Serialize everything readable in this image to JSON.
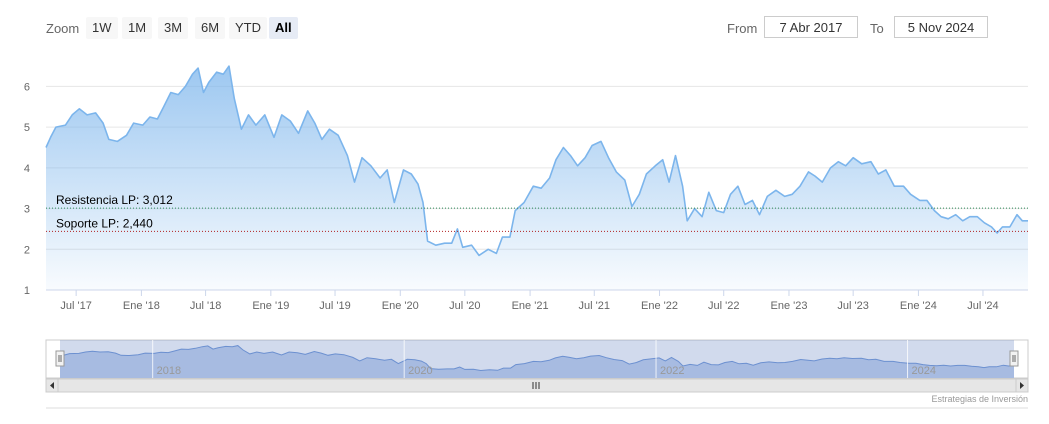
{
  "toolbar": {
    "zoom_label": "Zoom",
    "zoom_buttons": [
      "1W",
      "1M",
      "3M",
      "6M",
      "YTD",
      "All"
    ],
    "active_zoom": "All",
    "from_label": "From",
    "from_value": "7 Abr 2017",
    "to_label": "To",
    "to_value": "5 Nov 2024"
  },
  "credits": "Estrategias de Inversión",
  "colors": {
    "line": "#7cb5ec",
    "fill_top": "#7cb5ec",
    "resistance": "#2e8b57",
    "support": "#b22222",
    "navigator_fill": "#c3d3ee",
    "navigator_mask": "rgba(102,133,194,0.3)"
  },
  "chart_data": {
    "type": "area",
    "title": "",
    "xlabel": "",
    "ylabel": "",
    "ylim": [
      1,
      6.6
    ],
    "yticks": [
      1,
      2,
      3,
      4,
      5,
      6
    ],
    "xlim": [
      "2017-04-07",
      "2024-11-05"
    ],
    "xtick_labels": [
      "Jul '17",
      "Ene '18",
      "Jul '18",
      "Ene '19",
      "Jul '19",
      "Ene '20",
      "Jul '20",
      "Ene '21",
      "Jul '21",
      "Ene '22",
      "Jul '22",
      "Ene '23",
      "Jul '23",
      "Ene '24",
      "Jul '24"
    ],
    "xtick_dates": [
      "2017-07-01",
      "2018-01-01",
      "2018-07-01",
      "2019-01-01",
      "2019-07-01",
      "2020-01-01",
      "2020-07-01",
      "2021-01-01",
      "2021-07-01",
      "2022-01-01",
      "2022-07-01",
      "2023-01-01",
      "2023-07-01",
      "2024-01-01",
      "2024-07-01"
    ],
    "grid": true,
    "series": [
      {
        "values": [
          [
            "2017-04-07",
            4.5
          ],
          [
            "2017-04-20",
            4.75
          ],
          [
            "2017-05-05",
            5.0
          ],
          [
            "2017-06-01",
            5.05
          ],
          [
            "2017-06-20",
            5.3
          ],
          [
            "2017-07-10",
            5.45
          ],
          [
            "2017-08-01",
            5.3
          ],
          [
            "2017-08-25",
            5.35
          ],
          [
            "2017-09-15",
            5.1
          ],
          [
            "2017-10-01",
            4.7
          ],
          [
            "2017-10-25",
            4.65
          ],
          [
            "2017-11-20",
            4.8
          ],
          [
            "2017-12-10",
            5.1
          ],
          [
            "2018-01-05",
            5.05
          ],
          [
            "2018-01-25",
            5.25
          ],
          [
            "2018-02-15",
            5.2
          ],
          [
            "2018-03-05",
            5.5
          ],
          [
            "2018-03-25",
            5.85
          ],
          [
            "2018-04-15",
            5.8
          ],
          [
            "2018-05-05",
            6.0
          ],
          [
            "2018-05-25",
            6.3
          ],
          [
            "2018-06-10",
            6.45
          ],
          [
            "2018-06-25",
            5.85
          ],
          [
            "2018-07-10",
            6.1
          ],
          [
            "2018-08-01",
            6.35
          ],
          [
            "2018-08-20",
            6.3
          ],
          [
            "2018-09-05",
            6.5
          ],
          [
            "2018-09-20",
            5.7
          ],
          [
            "2018-10-10",
            4.95
          ],
          [
            "2018-10-30",
            5.3
          ],
          [
            "2018-11-20",
            5.05
          ],
          [
            "2018-12-15",
            5.3
          ],
          [
            "2019-01-10",
            4.75
          ],
          [
            "2019-02-01",
            5.3
          ],
          [
            "2019-02-25",
            5.15
          ],
          [
            "2019-03-20",
            4.85
          ],
          [
            "2019-04-15",
            5.4
          ],
          [
            "2019-05-05",
            5.1
          ],
          [
            "2019-05-25",
            4.7
          ],
          [
            "2019-06-15",
            4.95
          ],
          [
            "2019-07-10",
            4.8
          ],
          [
            "2019-08-05",
            4.3
          ],
          [
            "2019-08-25",
            3.65
          ],
          [
            "2019-09-15",
            4.25
          ],
          [
            "2019-10-10",
            4.05
          ],
          [
            "2019-11-05",
            3.75
          ],
          [
            "2019-11-25",
            3.95
          ],
          [
            "2019-12-15",
            3.15
          ],
          [
            "2020-01-10",
            3.95
          ],
          [
            "2020-02-01",
            3.85
          ],
          [
            "2020-02-20",
            3.6
          ],
          [
            "2020-03-05",
            3.15
          ],
          [
            "2020-03-18",
            2.2
          ],
          [
            "2020-04-10",
            2.1
          ],
          [
            "2020-05-05",
            2.15
          ],
          [
            "2020-05-25",
            2.15
          ],
          [
            "2020-06-10",
            2.5
          ],
          [
            "2020-06-25",
            2.05
          ],
          [
            "2020-07-20",
            2.1
          ],
          [
            "2020-08-10",
            1.85
          ],
          [
            "2020-09-05",
            2.0
          ],
          [
            "2020-09-28",
            1.9
          ],
          [
            "2020-10-15",
            2.3
          ],
          [
            "2020-11-05",
            2.3
          ],
          [
            "2020-11-20",
            2.95
          ],
          [
            "2020-12-15",
            3.15
          ],
          [
            "2021-01-10",
            3.55
          ],
          [
            "2021-02-01",
            3.5
          ],
          [
            "2021-02-25",
            3.75
          ],
          [
            "2021-03-15",
            4.2
          ],
          [
            "2021-04-05",
            4.5
          ],
          [
            "2021-04-25",
            4.3
          ],
          [
            "2021-05-15",
            4.05
          ],
          [
            "2021-06-05",
            4.25
          ],
          [
            "2021-06-25",
            4.55
          ],
          [
            "2021-07-20",
            4.65
          ],
          [
            "2021-08-10",
            4.25
          ],
          [
            "2021-09-01",
            3.9
          ],
          [
            "2021-09-25",
            3.7
          ],
          [
            "2021-10-15",
            3.05
          ],
          [
            "2021-11-05",
            3.35
          ],
          [
            "2021-11-25",
            3.85
          ],
          [
            "2021-12-20",
            4.05
          ],
          [
            "2022-01-10",
            4.2
          ],
          [
            "2022-01-28",
            3.65
          ],
          [
            "2022-02-15",
            4.3
          ],
          [
            "2022-03-07",
            3.55
          ],
          [
            "2022-03-20",
            2.7
          ],
          [
            "2022-04-10",
            3.0
          ],
          [
            "2022-05-01",
            2.8
          ],
          [
            "2022-05-20",
            3.4
          ],
          [
            "2022-06-10",
            2.95
          ],
          [
            "2022-07-01",
            2.9
          ],
          [
            "2022-07-20",
            3.35
          ],
          [
            "2022-08-10",
            3.55
          ],
          [
            "2022-08-30",
            3.1
          ],
          [
            "2022-09-20",
            3.2
          ],
          [
            "2022-10-10",
            2.85
          ],
          [
            "2022-11-01",
            3.3
          ],
          [
            "2022-11-25",
            3.45
          ],
          [
            "2022-12-20",
            3.3
          ],
          [
            "2023-01-10",
            3.35
          ],
          [
            "2023-02-01",
            3.55
          ],
          [
            "2023-02-25",
            3.9
          ],
          [
            "2023-03-15",
            3.8
          ],
          [
            "2023-04-05",
            3.65
          ],
          [
            "2023-04-28",
            4.0
          ],
          [
            "2023-05-20",
            4.15
          ],
          [
            "2023-06-10",
            4.05
          ],
          [
            "2023-07-01",
            4.25
          ],
          [
            "2023-07-25",
            4.1
          ],
          [
            "2023-08-20",
            4.15
          ],
          [
            "2023-09-10",
            3.85
          ],
          [
            "2023-10-01",
            3.95
          ],
          [
            "2023-10-25",
            3.55
          ],
          [
            "2023-11-20",
            3.55
          ],
          [
            "2023-12-10",
            3.35
          ],
          [
            "2024-01-05",
            3.2
          ],
          [
            "2024-01-25",
            3.2
          ],
          [
            "2024-02-15",
            2.95
          ],
          [
            "2024-03-05",
            2.8
          ],
          [
            "2024-03-25",
            2.75
          ],
          [
            "2024-04-15",
            2.85
          ],
          [
            "2024-05-05",
            2.7
          ],
          [
            "2024-05-25",
            2.8
          ],
          [
            "2024-06-15",
            2.8
          ],
          [
            "2024-07-05",
            2.65
          ],
          [
            "2024-07-25",
            2.55
          ],
          [
            "2024-08-10",
            2.4
          ],
          [
            "2024-08-25",
            2.55
          ],
          [
            "2024-09-15",
            2.55
          ],
          [
            "2024-10-05",
            2.85
          ],
          [
            "2024-10-20",
            2.7
          ],
          [
            "2024-11-05",
            2.7
          ]
        ]
      }
    ],
    "plot_lines": [
      {
        "label": "Resistencia LP: 3,012",
        "value": 3.012,
        "style": "dotted",
        "color": "#2e8b57"
      },
      {
        "label": "Soporte LP: 2,440",
        "value": 2.44,
        "style": "dotted",
        "color": "#b22222"
      }
    ],
    "navigator": {
      "year_labels": [
        "2018",
        "2020",
        "2022",
        "2024"
      ],
      "year_dates": [
        "2018-01-01",
        "2020-01-01",
        "2022-01-01",
        "2024-01-01"
      ]
    }
  }
}
